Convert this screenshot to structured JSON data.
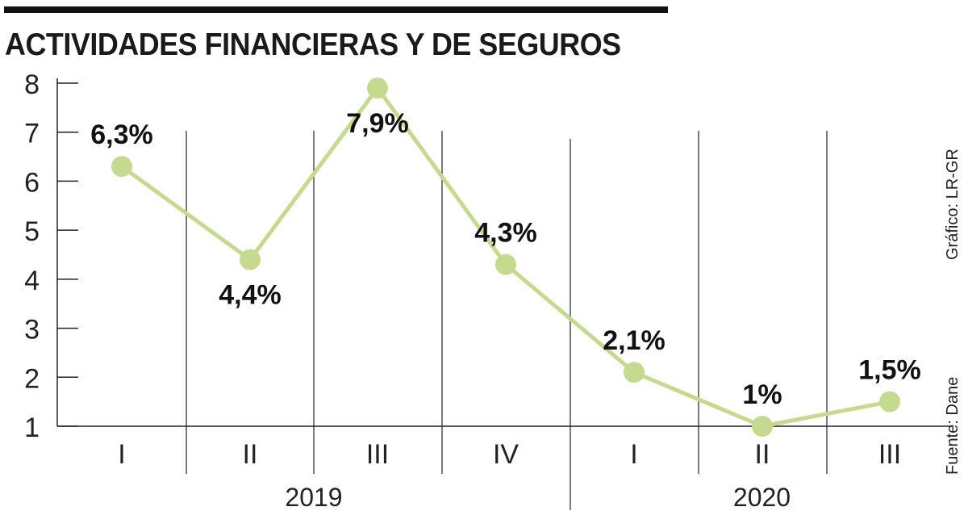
{
  "header": {
    "title": "ACTIVIDADES FINANCIERAS Y DE SEGUROS"
  },
  "credits": {
    "source": "Fuente: Dane",
    "graphic": "Gráfico: LR-GR"
  },
  "colors": {
    "series": "#c5da8e",
    "text": "#1a1a1a",
    "axis": "#222222"
  },
  "chart_data": {
    "type": "line",
    "title": "ACTIVIDADES FINANCIERAS Y DE SEGUROS",
    "xlabel": "",
    "ylabel": "",
    "ylim": [
      1,
      8
    ],
    "yticks": [
      1,
      2,
      3,
      4,
      5,
      6,
      7,
      8
    ],
    "grid": false,
    "categories": [
      "I",
      "II",
      "III",
      "IV",
      "I",
      "II",
      "III"
    ],
    "groups": [
      {
        "label": "2019",
        "start": 0,
        "end": 3
      },
      {
        "label": "2020",
        "start": 4,
        "end": 6
      }
    ],
    "series": [
      {
        "name": "Actividades financieras y de seguros",
        "values": [
          6.3,
          4.4,
          7.9,
          4.3,
          2.1,
          1.0,
          1.5
        ],
        "labels": [
          "6,3%",
          "4,4%",
          "7,9%",
          "4,3%",
          "2,1%",
          "1%",
          "1,5%"
        ]
      }
    ]
  }
}
